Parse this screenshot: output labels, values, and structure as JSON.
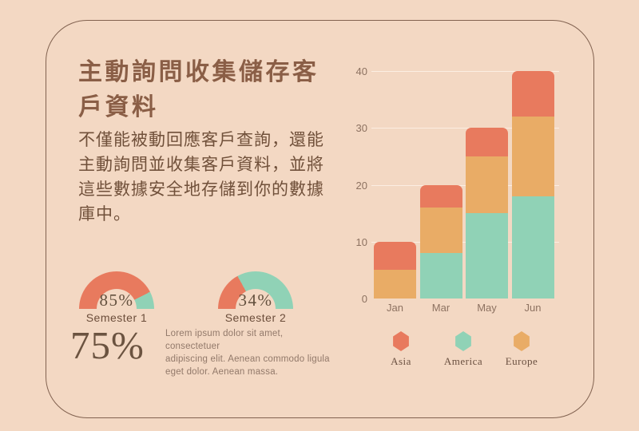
{
  "slide": {
    "title_lines": [
      "主動詢問收集儲存客",
      "戶資料"
    ],
    "body_lines": [
      "不僅能被動回應客戶查詢，還能",
      "主動詢問並收集客戶資料，並將",
      "這些數據安全地存儲到你的數據",
      "庫中。"
    ],
    "big_percent": "75%",
    "lorem_lines": [
      "Lorem ipsum dolor sit amet, consectetuer",
      "adipiscing elit. Aenean commodo ligula",
      "eget dolor. Aenean massa."
    ]
  },
  "colors": {
    "background": "#f3d8c3",
    "frame_border": "#6d4e3c",
    "coral": "#e87a5e",
    "teal": "#90d2b6",
    "orange": "#e9ac66",
    "title_text": "#8a5e46",
    "body_text": "#70503a",
    "axis_text": "#8d7261"
  },
  "chart_data": [
    {
      "type": "donut-gauge",
      "value": 85,
      "value_label": "85%",
      "caption": "Semester 1",
      "segments": [
        {
          "name": "filled",
          "color": "#e87a5e",
          "value": 85
        },
        {
          "name": "remainder",
          "color": "#90d2b6",
          "value": 15
        }
      ]
    },
    {
      "type": "donut-gauge",
      "value": 34,
      "value_label": "34%",
      "caption": "Semester 2",
      "segments": [
        {
          "name": "filled",
          "color": "#e87a5e",
          "value": 34
        },
        {
          "name": "remainder",
          "color": "#90d2b6",
          "value": 66
        }
      ]
    },
    {
      "type": "bar",
      "stacked": true,
      "categories": [
        "Jan",
        "Mar",
        "May",
        "Jun"
      ],
      "series": [
        {
          "name": "America",
          "color": "#90d2b6",
          "values": [
            0,
            8,
            15,
            18
          ]
        },
        {
          "name": "Europe",
          "color": "#e9ac66",
          "values": [
            5,
            8,
            10,
            14
          ]
        },
        {
          "name": "Asia",
          "color": "#e87a5e",
          "values": [
            5,
            4,
            5,
            8
          ]
        }
      ],
      "totals": [
        10,
        20,
        30,
        40
      ],
      "ylim": [
        0,
        40
      ],
      "yticks": [
        0,
        10,
        20,
        30,
        40
      ],
      "grid": true,
      "legend_position": "bottom",
      "legend_order": [
        {
          "name": "Asia",
          "color": "#e87a5e"
        },
        {
          "name": "America",
          "color": "#90d2b6"
        },
        {
          "name": "Europe",
          "color": "#e9ac66"
        }
      ]
    }
  ]
}
